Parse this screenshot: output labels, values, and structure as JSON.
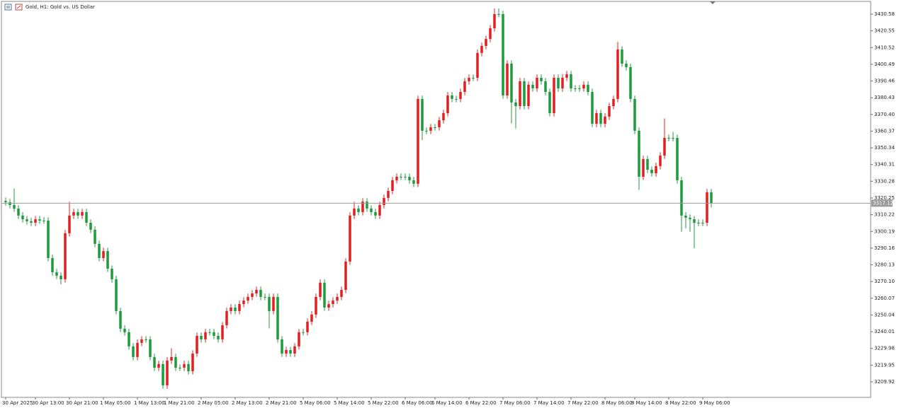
{
  "chart_data": {
    "type": "candlestick",
    "title": "Gold, H1:  Gold vs. US Dollar",
    "categories": [
      "30 Apr 2025",
      null,
      null,
      null,
      null,
      null,
      null,
      "30 Apr 13:00",
      null,
      null,
      null,
      null,
      null,
      null,
      null,
      "30 Apr 21:00",
      null,
      null,
      null,
      null,
      null,
      null,
      null,
      "1 May 05:00",
      null,
      null,
      null,
      null,
      null,
      null,
      null,
      "1 May 13:00",
      null,
      null,
      null,
      null,
      null,
      null,
      "1 May 21:00",
      null,
      null,
      null,
      null,
      null,
      null,
      null,
      "2 May 05:00",
      null,
      null,
      null,
      null,
      null,
      null,
      null,
      "2 May 13:00",
      null,
      null,
      null,
      null,
      null,
      null,
      null,
      "2 May 21:00",
      null,
      null,
      null,
      null,
      null,
      null,
      null,
      "5 May 06:00",
      null,
      null,
      null,
      null,
      null,
      null,
      null,
      "5 May 14:00",
      null,
      null,
      null,
      null,
      null,
      null,
      null,
      "5 May 22:00",
      null,
      null,
      null,
      null,
      null,
      null,
      null,
      "6 May 06:00",
      null,
      null,
      null,
      null,
      null,
      null,
      "6 May 14:00",
      null,
      null,
      null,
      null,
      null,
      null,
      null,
      "6 May 22:00",
      null,
      null,
      null,
      null,
      null,
      null,
      null,
      "7 May 06:00",
      null,
      null,
      null,
      null,
      null,
      null,
      null,
      "7 May 14:00",
      null,
      null,
      null,
      null,
      null,
      null,
      null,
      "7 May 22:00",
      null,
      null,
      null,
      null,
      null,
      null,
      null,
      "8 May 06:00",
      null,
      null,
      null,
      null,
      null,
      null,
      "8 May 14:00",
      null,
      null,
      null,
      null,
      null,
      null,
      null,
      "8 May 22:00",
      null,
      null,
      null,
      null,
      null,
      null,
      null,
      "9 May 06:00",
      null,
      null
    ],
    "series": [
      {
        "up_color": "#e02020",
        "down_color": "#1f9a3c",
        "open": [
          3318.5,
          3317.7,
          3316.0,
          3313.9,
          3309.7,
          3307.5,
          3306.3,
          3305.4,
          3307.5,
          3306.7,
          3306.7,
          3284.2,
          3275.7,
          3273.6,
          3271.5,
          3299.1,
          3309.7,
          3311.8,
          3309.7,
          3311.8,
          3305.4,
          3301.2,
          3292.7,
          3284.2,
          3288.4,
          3277.8,
          3271.5,
          3252.4,
          3241.8,
          3239.7,
          3231.2,
          3224.8,
          3233.3,
          3235.4,
          3235.4,
          3224.8,
          3218.4,
          3220.6,
          3207.8,
          3222.7,
          3224.8,
          3218.4,
          3218.4,
          3220.6,
          3216.3,
          3226.9,
          3237.5,
          3235.4,
          3239.7,
          3239.7,
          3237.5,
          3235.4,
          3243.9,
          3252.4,
          3254.5,
          3252.4,
          3256.6,
          3258.7,
          3260.9,
          3263.0,
          3265.1,
          3260.9,
          3260.9,
          3252.4,
          3260.9,
          3235.4,
          3226.9,
          3229.0,
          3226.9,
          3231.2,
          3239.7,
          3239.7,
          3246.0,
          3250.3,
          3260.9,
          3269.4,
          3254.5,
          3256.6,
          3258.7,
          3260.9,
          3265.1,
          3282.1,
          3309.7,
          3313.9,
          3311.8,
          3318.1,
          3313.9,
          3311.8,
          3309.7,
          3316.0,
          3320.3,
          3324.5,
          3330.9,
          3333.0,
          3333.0,
          3333.0,
          3330.9,
          3328.8,
          3379.7,
          3360.6,
          3360.6,
          3362.7,
          3362.7,
          3366.9,
          3371.2,
          3381.8,
          3379.7,
          3379.7,
          3383.9,
          3390.3,
          3392.4,
          3392.4,
          3407.3,
          3411.5,
          3415.7,
          3422.1,
          3430.6,
          3430.6,
          3381.8,
          3400.9,
          3377.6,
          3375.4,
          3390.3,
          3375.4,
          3388.2,
          3386.0,
          3392.4,
          3390.3,
          3383.9,
          3371.2,
          3392.4,
          3386.0,
          3392.4,
          3394.5,
          3386.0,
          3386.0,
          3386.0,
          3388.2,
          3383.9,
          3364.8,
          3371.2,
          3364.8,
          3369.1,
          3375.4,
          3379.7,
          3409.4,
          3400.9,
          3398.8,
          3379.7,
          3360.6,
          3333.0,
          3343.6,
          3337.2,
          3335.1,
          3339.4,
          3345.7,
          3356.3,
          3356.3,
          3356.3,
          3330.9,
          3309.7,
          3308.4,
          3307.5,
          3305.4,
          3305.4,
          3305.4,
          3323.7
        ],
        "high": [
          3320.5,
          3319.7,
          3326.0,
          3315.9,
          3311.7,
          3309.5,
          3308.3,
          3309.5,
          3309.5,
          3308.7,
          3308.7,
          3286.2,
          3277.7,
          3275.6,
          3301.1,
          3318.0,
          3313.8,
          3313.8,
          3313.8,
          3313.8,
          3307.4,
          3303.2,
          3294.7,
          3290.4,
          3290.4,
          3279.8,
          3273.5,
          3254.4,
          3243.8,
          3241.7,
          3233.2,
          3235.3,
          3237.4,
          3237.4,
          3237.4,
          3226.8,
          3222.6,
          3222.6,
          3224.7,
          3230.0,
          3226.8,
          3220.4,
          3222.6,
          3222.6,
          3228.9,
          3239.5,
          3239.5,
          3241.7,
          3241.7,
          3241.7,
          3239.5,
          3245.9,
          3254.4,
          3256.5,
          3256.5,
          3258.6,
          3260.7,
          3262.9,
          3265.0,
          3267.1,
          3267.1,
          3262.9,
          3262.9,
          3262.9,
          3262.9,
          3237.4,
          3231.0,
          3231.0,
          3233.2,
          3241.7,
          3241.7,
          3248.0,
          3252.3,
          3262.9,
          3271.4,
          3271.4,
          3258.6,
          3260.7,
          3262.9,
          3267.1,
          3284.1,
          3311.7,
          3318.0,
          3315.9,
          3320.1,
          3320.1,
          3315.9,
          3313.8,
          3318.0,
          3322.3,
          3326.5,
          3332.9,
          3335.0,
          3335.0,
          3335.0,
          3335.0,
          3332.9,
          3381.7,
          3381.7,
          3362.6,
          3364.7,
          3364.7,
          3368.9,
          3373.2,
          3383.8,
          3383.8,
          3381.7,
          3385.9,
          3392.3,
          3394.4,
          3394.4,
          3409.3,
          3413.5,
          3417.7,
          3424.1,
          3434.0,
          3434.0,
          3432.6,
          3402.9,
          3402.9,
          3379.6,
          3392.3,
          3392.3,
          3390.2,
          3390.2,
          3394.4,
          3394.4,
          3392.3,
          3385.9,
          3394.4,
          3394.4,
          3394.4,
          3396.5,
          3396.5,
          3388.0,
          3388.0,
          3390.2,
          3390.2,
          3385.9,
          3373.2,
          3373.2,
          3371.1,
          3377.4,
          3381.7,
          3414.0,
          3411.4,
          3402.9,
          3400.8,
          3381.7,
          3362.6,
          3345.6,
          3345.6,
          3339.2,
          3341.4,
          3347.7,
          3368.0,
          3358.3,
          3360.0,
          3358.3,
          3332.9,
          3311.7,
          3310.4,
          3309.5,
          3307.4,
          3307.4,
          3325.7,
          3325.7
        ],
        "low": [
          3315.7,
          3314.0,
          3311.9,
          3307.7,
          3305.5,
          3304.3,
          3303.4,
          3303.4,
          3304.7,
          3304.7,
          3282.2,
          3273.7,
          3271.6,
          3268.5,
          3269.5,
          3297.1,
          3307.7,
          3307.7,
          3307.7,
          3303.4,
          3299.2,
          3290.7,
          3282.2,
          3282.2,
          3275.8,
          3269.5,
          3250.4,
          3239.8,
          3237.7,
          3229.2,
          3222.8,
          3222.8,
          3231.3,
          3233.4,
          3222.8,
          3216.4,
          3216.4,
          3205.8,
          3205.8,
          3220.7,
          3216.4,
          3216.4,
          3216.4,
          3214.3,
          3214.3,
          3224.9,
          3233.4,
          3233.4,
          3237.7,
          3235.5,
          3233.4,
          3233.4,
          3241.9,
          3250.4,
          3250.4,
          3250.4,
          3254.6,
          3256.7,
          3258.9,
          3261.0,
          3258.9,
          3258.9,
          3242.0,
          3250.4,
          3233.4,
          3224.9,
          3224.9,
          3224.9,
          3224.9,
          3229.2,
          3237.7,
          3237.7,
          3244.0,
          3248.3,
          3258.9,
          3252.5,
          3252.5,
          3254.6,
          3256.7,
          3258.9,
          3263.1,
          3280.1,
          3307.7,
          3309.8,
          3309.8,
          3311.9,
          3309.8,
          3307.7,
          3307.7,
          3314.0,
          3318.3,
          3322.5,
          3328.9,
          3331.0,
          3331.0,
          3328.9,
          3326.8,
          3326.8,
          3355.0,
          3358.6,
          3358.6,
          3360.7,
          3360.7,
          3364.9,
          3369.2,
          3377.7,
          3377.7,
          3377.7,
          3381.9,
          3388.3,
          3390.4,
          3390.4,
          3405.3,
          3409.5,
          3413.7,
          3420.1,
          3428.6,
          3379.8,
          3379.8,
          3365.0,
          3362.0,
          3373.4,
          3373.4,
          3373.4,
          3384.0,
          3384.0,
          3388.3,
          3381.9,
          3369.2,
          3369.2,
          3384.0,
          3384.0,
          3390.4,
          3384.0,
          3384.0,
          3384.0,
          3384.0,
          3381.9,
          3362.8,
          3362.8,
          3362.8,
          3362.8,
          3367.1,
          3373.4,
          3377.7,
          3398.9,
          3396.8,
          3377.7,
          3358.6,
          3325.0,
          3331.0,
          3335.2,
          3333.1,
          3333.1,
          3337.4,
          3343.7,
          3354.3,
          3354.3,
          3328.9,
          3300.0,
          3302.0,
          3300.0,
          3290.0,
          3303.4,
          3303.4,
          3303.4,
          3314.5
        ],
        "close": [
          3317.7,
          3316.0,
          3313.9,
          3309.7,
          3307.5,
          3306.3,
          3305.4,
          3307.5,
          3306.7,
          3306.7,
          3284.2,
          3275.7,
          3273.6,
          3271.5,
          3299.1,
          3309.7,
          3311.8,
          3309.7,
          3311.8,
          3305.4,
          3301.2,
          3292.7,
          3284.2,
          3288.4,
          3277.8,
          3271.5,
          3252.4,
          3241.8,
          3239.7,
          3231.2,
          3224.8,
          3233.3,
          3235.4,
          3235.4,
          3224.8,
          3218.4,
          3220.6,
          3207.8,
          3222.7,
          3224.8,
          3218.4,
          3218.4,
          3220.6,
          3216.3,
          3226.9,
          3237.5,
          3235.4,
          3239.7,
          3239.7,
          3237.5,
          3235.4,
          3243.9,
          3252.4,
          3254.5,
          3252.4,
          3256.6,
          3258.7,
          3260.9,
          3263.0,
          3265.1,
          3260.9,
          3260.9,
          3252.4,
          3260.9,
          3235.4,
          3226.9,
          3229.0,
          3226.9,
          3231.2,
          3239.7,
          3239.7,
          3246.0,
          3250.3,
          3260.9,
          3269.4,
          3254.5,
          3256.6,
          3258.7,
          3260.9,
          3265.1,
          3282.1,
          3309.7,
          3313.9,
          3311.8,
          3318.1,
          3313.9,
          3311.8,
          3309.7,
          3316.0,
          3320.3,
          3324.5,
          3330.9,
          3333.0,
          3333.0,
          3333.0,
          3330.9,
          3328.8,
          3379.7,
          3360.6,
          3360.6,
          3362.7,
          3362.7,
          3366.9,
          3371.2,
          3381.8,
          3379.7,
          3379.7,
          3383.9,
          3390.3,
          3392.4,
          3392.4,
          3407.3,
          3411.5,
          3415.7,
          3422.1,
          3430.6,
          3430.6,
          3381.8,
          3400.9,
          3377.6,
          3375.4,
          3390.3,
          3375.4,
          3388.2,
          3386.0,
          3392.4,
          3390.3,
          3383.9,
          3371.2,
          3392.4,
          3386.0,
          3392.4,
          3394.5,
          3386.0,
          3386.0,
          3386.0,
          3388.2,
          3383.9,
          3364.8,
          3371.2,
          3364.8,
          3369.1,
          3375.4,
          3379.7,
          3409.4,
          3400.9,
          3398.8,
          3379.7,
          3360.6,
          3333.0,
          3343.6,
          3337.2,
          3335.1,
          3339.4,
          3345.7,
          3356.3,
          3356.3,
          3356.3,
          3330.9,
          3309.7,
          3308.4,
          3307.5,
          3305.4,
          3305.4,
          3305.4,
          3323.7,
          3317.12
        ]
      }
    ],
    "ylim": [
      3200.58,
      3438.22
    ],
    "yticks": [
      3430.58,
      3420.55,
      3410.52,
      3400.49,
      3390.46,
      3380.43,
      {
        "value": 3370.4,
        "label": "3370.40"
      },
      3360.37,
      3350.34,
      3340.31,
      3330.28,
      3320.25,
      3310.22,
      3300.19,
      3290.16,
      3280.13,
      {
        "value": 3270.1,
        "label": "3270.10"
      },
      3260.07,
      3250.04,
      3240.01,
      3229.98,
      3219.95,
      3209.92
    ],
    "last_price": 3317.12,
    "price_line_color": "#9a9a9a"
  }
}
